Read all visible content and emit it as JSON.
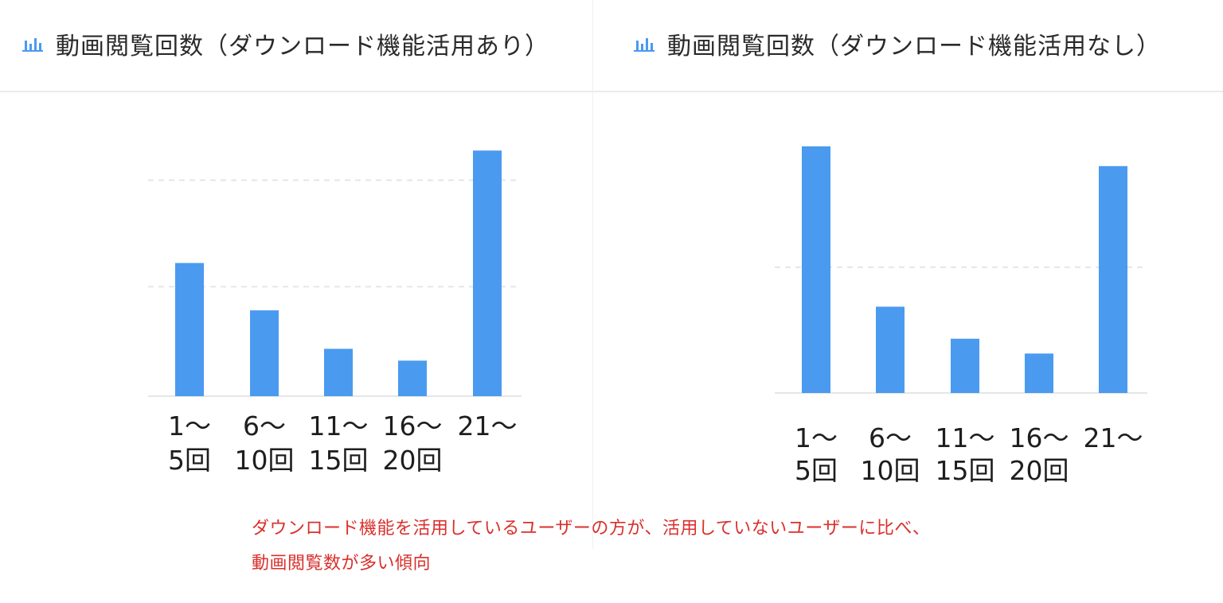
{
  "colors": {
    "bar": "#4a9af0",
    "grid": "#e3e6ea",
    "axis": "#e3e6ea",
    "note": "#d9302c",
    "icon": "#4a9af0"
  },
  "panels": [
    {
      "title": "動画閲覧回数（ダウンロード機能活用あり）",
      "icon": "bar-chart-icon"
    },
    {
      "title": "動画閲覧回数（ダウンロード機能活用なし）",
      "icon": "bar-chart-icon"
    }
  ],
  "chart_data": [
    {
      "type": "bar",
      "title": "動画閲覧回数（ダウンロード機能活用あり）",
      "categories": [
        [
          "1〜",
          "5回"
        ],
        [
          "6〜",
          "10回"
        ],
        [
          "11〜",
          "15回"
        ],
        [
          "16〜",
          "20回"
        ],
        [
          "21〜",
          ""
        ]
      ],
      "values": [
        45,
        29,
        16,
        12,
        83
      ],
      "ylim": [
        0,
        100
      ],
      "grid": [
        37,
        73
      ],
      "xlabel": "",
      "ylabel": ""
    },
    {
      "type": "bar",
      "title": "動画閲覧回数（ダウンロード機能活用なし）",
      "categories": [
        [
          "1〜",
          "5回"
        ],
        [
          "6〜",
          "10回"
        ],
        [
          "11〜",
          "15回"
        ],
        [
          "16〜",
          "20回"
        ],
        [
          "21〜",
          ""
        ]
      ],
      "values": [
        100,
        35,
        22,
        16,
        92
      ],
      "ylim": [
        0,
        100
      ],
      "grid": [
        51
      ],
      "xlabel": "",
      "ylabel": ""
    }
  ],
  "note": {
    "line1": "ダウンロード機能を活用しているユーザーの方が、活用していないユーザーに比べ、",
    "line2": "動画閲覧数が多い傾向"
  }
}
